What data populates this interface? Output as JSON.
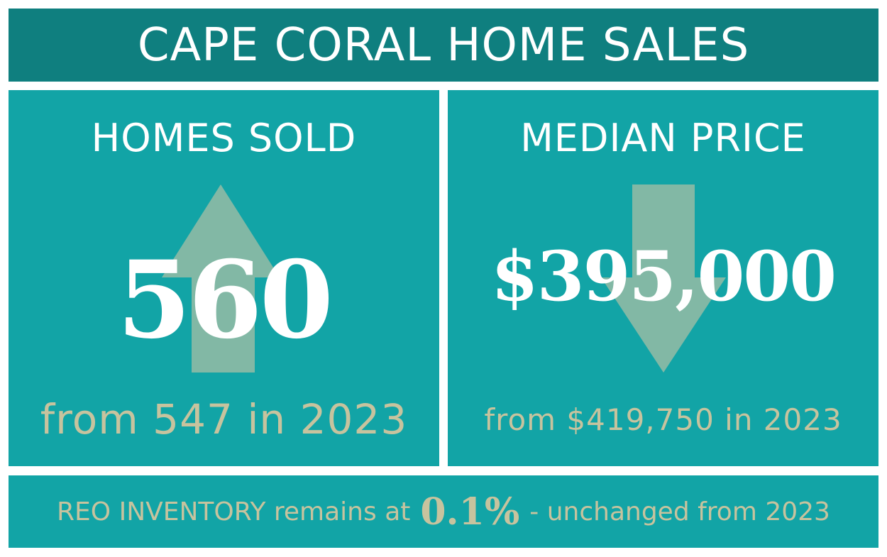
{
  "header": {
    "title": "CAPE CORAL HOME SALES"
  },
  "homes_sold": {
    "heading": "HOMES SOLD",
    "value": "560",
    "comparison": "from 547 in 2023",
    "trend_icon": "arrow-up-icon"
  },
  "median_price": {
    "heading": "MEDIAN PRICE",
    "value": "$395,000",
    "comparison": "from $419,750 in 2023",
    "trend_icon": "arrow-down-icon"
  },
  "reo": {
    "prefix": "REO INVENTORY remains at",
    "value": "0.1%",
    "suffix": "- unchanged from 2023"
  },
  "colors": {
    "title_bg": "#0f7f7f",
    "panel_bg": "#12a4a6",
    "arrow": "#82b8a5",
    "accent_text": "#c7c39e",
    "primary_text": "#ffffff"
  }
}
